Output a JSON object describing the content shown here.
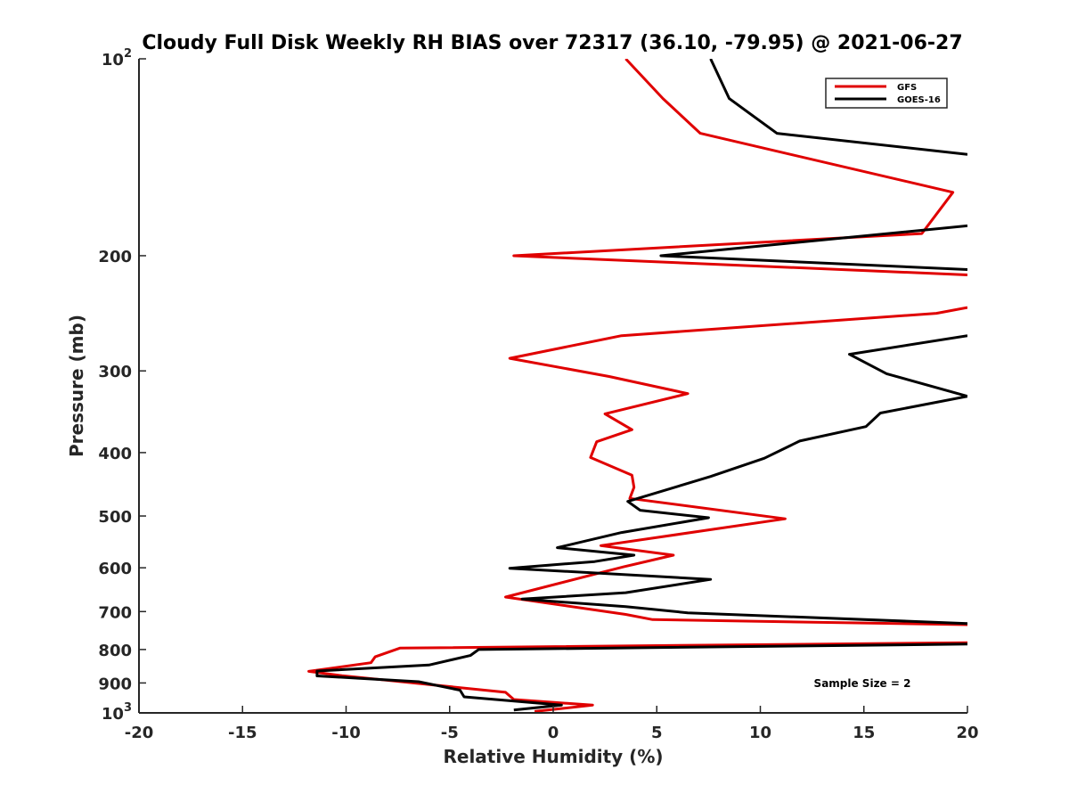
{
  "chart_data": {
    "type": "line",
    "title": "Cloudy Full Disk Weekly RH BIAS over 72317 (36.10, -79.95) @ 2021-06-27",
    "xlabel": "Relative Humidity (%)",
    "ylabel": "Pressure (mb)",
    "xlim": [
      -20,
      20
    ],
    "ylim": [
      100,
      1000
    ],
    "y_scale": "log",
    "y_reversed": true,
    "x_ticks": [
      "-20",
      "-15",
      "-10",
      "-5",
      "0",
      "5",
      "10",
      "15",
      "20"
    ],
    "y_ticks": [
      {
        "value": 100,
        "label": "10",
        "sup": "2"
      },
      {
        "value": 200,
        "label": "200",
        "sup": ""
      },
      {
        "value": 300,
        "label": "300",
        "sup": ""
      },
      {
        "value": 400,
        "label": "400",
        "sup": ""
      },
      {
        "value": 500,
        "label": "500",
        "sup": ""
      },
      {
        "value": 600,
        "label": "600",
        "sup": ""
      },
      {
        "value": 700,
        "label": "700",
        "sup": ""
      },
      {
        "value": 800,
        "label": "800",
        "sup": ""
      },
      {
        "value": 900,
        "label": "900",
        "sup": ""
      },
      {
        "value": 1000,
        "label": "10",
        "sup": "3"
      }
    ],
    "legend": {
      "position": "top-right"
    },
    "annotation": "Sample Size = 2",
    "series": [
      {
        "name": "GFS",
        "color": "#e00000",
        "points": [
          [
            3.5,
            100
          ],
          [
            5.3,
            115
          ],
          [
            7.1,
            130
          ],
          [
            19.3,
            160
          ],
          [
            17.8,
            185
          ],
          [
            -1.9,
            200
          ],
          [
            20.0,
            214
          ],
          [
            null,
            220
          ],
          [
            20.0,
            240
          ],
          [
            18.5,
            245
          ],
          [
            3.3,
            265
          ],
          [
            -2.1,
            287
          ],
          [
            2.7,
            306
          ],
          [
            6.5,
            325
          ],
          [
            2.5,
            349
          ],
          [
            3.8,
            369
          ],
          [
            2.1,
            385
          ],
          [
            1.8,
            407
          ],
          [
            3.8,
            433
          ],
          [
            3.9,
            452
          ],
          [
            3.7,
            470
          ],
          [
            11.2,
            505
          ],
          [
            2.3,
            555
          ],
          [
            5.8,
            574
          ],
          [
            3.4,
            598
          ],
          [
            -2.3,
            665
          ],
          [
            3.5,
            707
          ],
          [
            4.8,
            720
          ],
          [
            20.0,
            733
          ],
          [
            null,
            760
          ],
          [
            20.0,
            781
          ],
          [
            -7.4,
            796
          ],
          [
            -8.6,
            821
          ],
          [
            -8.8,
            838
          ],
          [
            -11.8,
            864
          ],
          [
            -10.2,
            877
          ],
          [
            -2.3,
            930
          ],
          [
            -1.9,
            954
          ],
          [
            1.9,
            973
          ],
          [
            -0.9,
            995
          ]
        ]
      },
      {
        "name": "GOES-16",
        "color": "#000000",
        "points": [
          [
            7.6,
            100
          ],
          [
            8.5,
            115
          ],
          [
            10.8,
            130
          ],
          [
            20.0,
            140
          ],
          [
            null,
            165
          ],
          [
            20.0,
            180
          ],
          [
            5.2,
            200
          ],
          [
            20.0,
            210
          ],
          [
            null,
            240
          ],
          [
            20.0,
            265
          ],
          [
            14.3,
            283
          ],
          [
            16.1,
            303
          ],
          [
            20.0,
            328
          ],
          [
            15.8,
            348
          ],
          [
            15.1,
            365
          ],
          [
            11.9,
            384
          ],
          [
            10.2,
            408
          ],
          [
            7.6,
            435
          ],
          [
            3.6,
            475
          ],
          [
            4.2,
            490
          ],
          [
            7.5,
            503
          ],
          [
            3.3,
            530
          ],
          [
            0.2,
            559
          ],
          [
            3.9,
            574
          ],
          [
            2.0,
            587
          ],
          [
            -2.1,
            601
          ],
          [
            7.6,
            625
          ],
          [
            3.5,
            655
          ],
          [
            -1.5,
            670
          ],
          [
            3.5,
            688
          ],
          [
            6.5,
            703
          ],
          [
            20.0,
            730
          ],
          [
            null,
            755
          ],
          [
            20.0,
            785
          ],
          [
            -3.6,
            800
          ],
          [
            -4.0,
            817
          ],
          [
            -6.0,
            845
          ],
          [
            -11.4,
            863
          ],
          [
            -11.4,
            878
          ],
          [
            -6.5,
            896
          ],
          [
            -4.5,
            923
          ],
          [
            -4.3,
            945
          ],
          [
            0.4,
            973
          ],
          [
            -1.9,
            990
          ]
        ]
      }
    ]
  }
}
